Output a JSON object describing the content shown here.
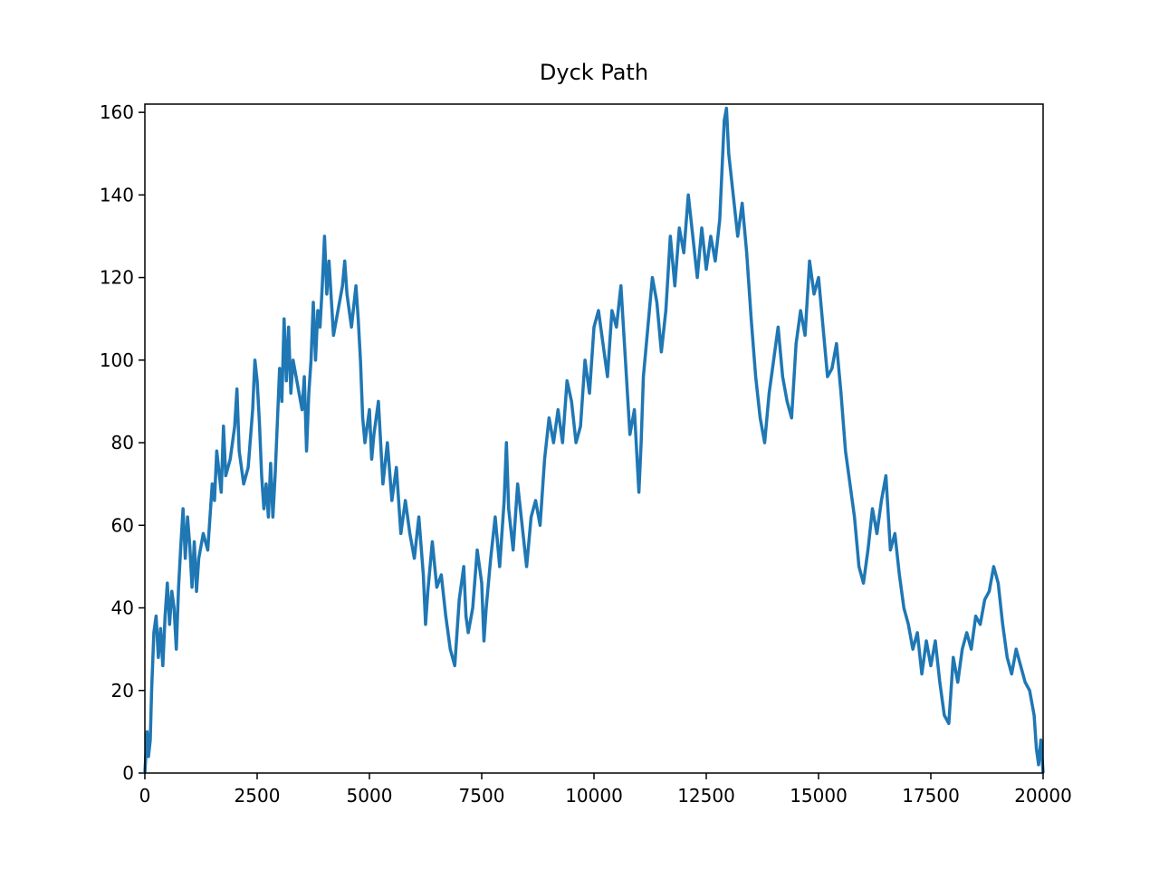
{
  "chart_data": {
    "type": "line",
    "title": "Dyck Path",
    "x": [
      0,
      50,
      80,
      120,
      150,
      200,
      250,
      300,
      350,
      400,
      450,
      500,
      550,
      600,
      650,
      700,
      750,
      800,
      850,
      900,
      950,
      1000,
      1050,
      1100,
      1150,
      1200,
      1300,
      1400,
      1450,
      1500,
      1550,
      1600,
      1700,
      1750,
      1800,
      1900,
      2000,
      2050,
      2100,
      2200,
      2300,
      2400,
      2450,
      2500,
      2550,
      2600,
      2650,
      2700,
      2750,
      2800,
      2850,
      2900,
      3000,
      3050,
      3100,
      3150,
      3200,
      3250,
      3300,
      3400,
      3500,
      3550,
      3600,
      3650,
      3700,
      3750,
      3800,
      3850,
      3900,
      3950,
      4000,
      4050,
      4100,
      4200,
      4300,
      4400,
      4450,
      4500,
      4600,
      4700,
      4750,
      4800,
      4850,
      4900,
      5000,
      5050,
      5100,
      5200,
      5300,
      5400,
      5500,
      5600,
      5700,
      5800,
      5900,
      6000,
      6100,
      6200,
      6250,
      6300,
      6400,
      6500,
      6600,
      6700,
      6800,
      6900,
      7000,
      7100,
      7150,
      7200,
      7300,
      7400,
      7500,
      7550,
      7600,
      7700,
      7800,
      7900,
      8000,
      8050,
      8100,
      8200,
      8300,
      8400,
      8500,
      8600,
      8700,
      8800,
      8900,
      9000,
      9100,
      9200,
      9300,
      9400,
      9500,
      9600,
      9700,
      9800,
      9900,
      10000,
      10100,
      10200,
      10300,
      10400,
      10500,
      10600,
      10700,
      10800,
      10900,
      11000,
      11050,
      11100,
      11200,
      11300,
      11400,
      11500,
      11600,
      11700,
      11800,
      11900,
      12000,
      12100,
      12200,
      12300,
      12400,
      12500,
      12600,
      12700,
      12800,
      12900,
      12950,
      13000,
      13100,
      13200,
      13300,
      13400,
      13500,
      13600,
      13700,
      13800,
      13900,
      14000,
      14100,
      14200,
      14300,
      14400,
      14500,
      14600,
      14700,
      14800,
      14900,
      15000,
      15100,
      15200,
      15300,
      15400,
      15500,
      15600,
      15700,
      15800,
      15900,
      16000,
      16100,
      16200,
      16300,
      16400,
      16500,
      16600,
      16700,
      16800,
      16900,
      17000,
      17100,
      17200,
      17300,
      17400,
      17500,
      17600,
      17700,
      17800,
      17900,
      18000,
      18100,
      18200,
      18300,
      18400,
      18500,
      18600,
      18700,
      18800,
      18900,
      19000,
      19100,
      19200,
      19300,
      19400,
      19500,
      19600,
      19700,
      19800,
      19850,
      19900,
      19950,
      20000
    ],
    "series": [
      {
        "color": "#1f77b4",
        "values": [
          0,
          10,
          4,
          8,
          20,
          34,
          38,
          28,
          35,
          26,
          38,
          46,
          36,
          44,
          40,
          30,
          45,
          55,
          64,
          52,
          62,
          55,
          45,
          56,
          44,
          52,
          58,
          54,
          62,
          70,
          66,
          78,
          68,
          84,
          72,
          76,
          84,
          93,
          78,
          70,
          74,
          88,
          100,
          95,
          85,
          72,
          64,
          70,
          62,
          75,
          62,
          72,
          98,
          90,
          110,
          95,
          108,
          92,
          100,
          94,
          88,
          96,
          78,
          92,
          100,
          114,
          100,
          112,
          108,
          118,
          130,
          116,
          124,
          106,
          112,
          118,
          124,
          116,
          108,
          118,
          110,
          100,
          86,
          80,
          88,
          76,
          82,
          90,
          70,
          80,
          66,
          74,
          58,
          66,
          58,
          52,
          62,
          48,
          36,
          44,
          56,
          45,
          48,
          38,
          30,
          26,
          42,
          50,
          38,
          34,
          40,
          54,
          46,
          32,
          40,
          52,
          62,
          50,
          66,
          80,
          64,
          54,
          70,
          60,
          50,
          62,
          66,
          60,
          76,
          86,
          80,
          88,
          80,
          95,
          90,
          80,
          84,
          100,
          92,
          108,
          112,
          104,
          96,
          112,
          108,
          118,
          100,
          82,
          88,
          68,
          80,
          96,
          108,
          120,
          114,
          102,
          112,
          130,
          118,
          132,
          126,
          140,
          130,
          120,
          132,
          122,
          130,
          124,
          134,
          158,
          161,
          150,
          140,
          130,
          138,
          126,
          110,
          96,
          86,
          80,
          92,
          100,
          108,
          96,
          90,
          86,
          104,
          112,
          106,
          124,
          116,
          120,
          108,
          96,
          98,
          104,
          92,
          78,
          70,
          62,
          50,
          46,
          54,
          64,
          58,
          66,
          72,
          54,
          58,
          48,
          40,
          36,
          30,
          34,
          24,
          32,
          26,
          32,
          22,
          14,
          12,
          28,
          22,
          30,
          34,
          30,
          38,
          36,
          42,
          44,
          50,
          46,
          36,
          28,
          24,
          30,
          26,
          22,
          20,
          14,
          6,
          2,
          8,
          0
        ]
      }
    ],
    "xlim": [
      0,
      20000
    ],
    "ylim": [
      0,
      162
    ],
    "xticks": [
      0,
      2500,
      5000,
      7500,
      10000,
      12500,
      15000,
      17500,
      20000
    ],
    "yticks": [
      0,
      20,
      40,
      60,
      80,
      100,
      120,
      140,
      160
    ]
  }
}
